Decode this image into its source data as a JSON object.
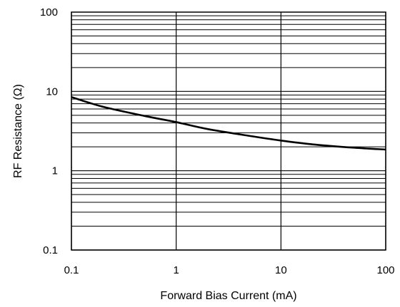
{
  "chart_data": {
    "type": "line",
    "title": "",
    "xlabel": "Forward Bias Current (mA)",
    "ylabel": "RF Resistance (Ω)",
    "x_scale": "log",
    "y_scale": "log",
    "xlim": [
      0.1,
      100
    ],
    "ylim": [
      0.1,
      100
    ],
    "x_ticks": [
      0.1,
      1,
      10,
      100
    ],
    "x_tick_labels": [
      "0.1",
      "1",
      "10",
      "100"
    ],
    "y_ticks": [
      0.1,
      1,
      10,
      100
    ],
    "y_tick_labels": [
      "0.1",
      "1",
      "10",
      "100"
    ],
    "grid": {
      "x": "major decades only",
      "y": "major and minor (log)"
    },
    "legend": "none",
    "series": [
      {
        "color": "#000000",
        "x": [
          0.1,
          0.2,
          0.5,
          1,
          2,
          5,
          10,
          20,
          50,
          100
        ],
        "y": [
          8.5,
          6.4,
          4.9,
          4.1,
          3.35,
          2.75,
          2.4,
          2.15,
          1.95,
          1.85
        ]
      }
    ]
  }
}
